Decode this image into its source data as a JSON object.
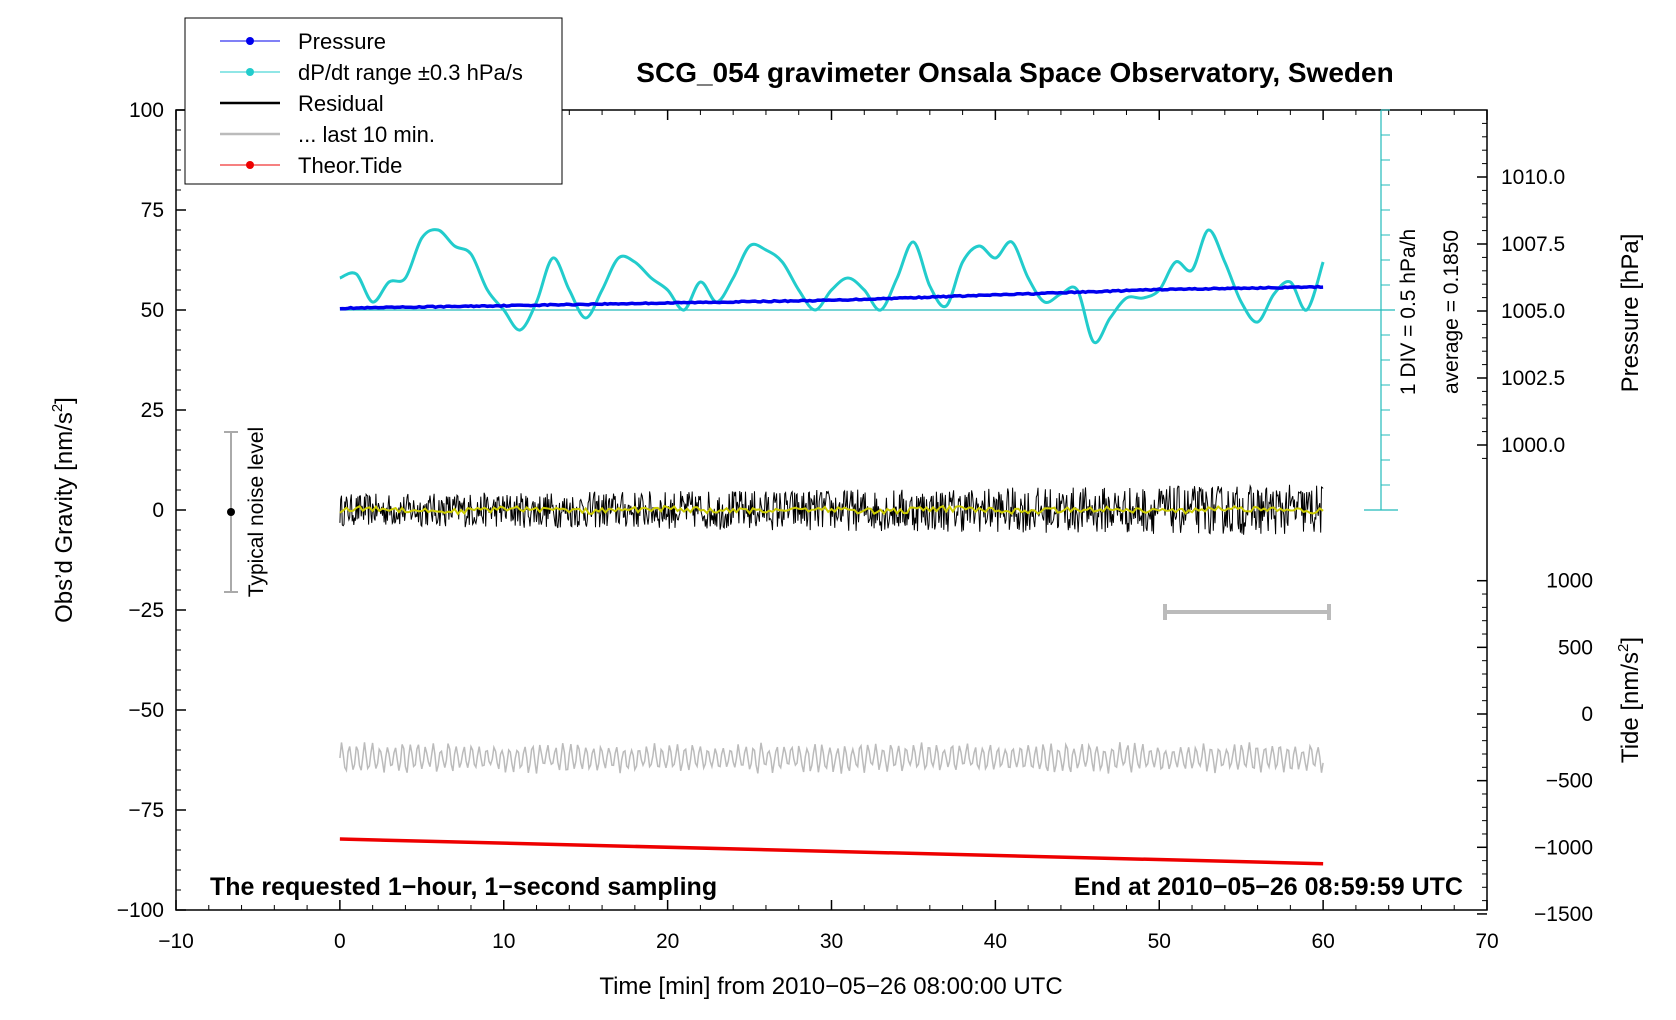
{
  "chart_data": {
    "type": "line",
    "title": "SCG_054 gravimeter Onsala Space Observatory, Sweden",
    "xlabel": "Time [min] from 2010−05−26 08:00:00 UTC",
    "ylabel_left_text": "Obs’d Gravity [nm/s",
    "ylabel_left_sup": "2",
    "ylabel_left_end": "]",
    "ylabel_right_top": "Pressure [hPa]",
    "ylabel_right_bottom_text": "Tide [nm/s",
    "ylabel_right_bottom_sup": "2",
    "ylabel_right_bottom_end": "]",
    "xlim": [
      -10,
      70
    ],
    "ylim_left": [
      -100,
      100
    ],
    "x_ticks": [
      "−10",
      "0",
      "10",
      "20",
      "30",
      "40",
      "50",
      "60",
      "70"
    ],
    "y_ticks_left": [
      "100",
      "75",
      "50",
      "25",
      "0",
      "−25",
      "−50",
      "−75",
      "−100"
    ],
    "y_ticks_right_pressure": [
      "1010.0",
      "1007.5",
      "1005.0",
      "1002.5",
      "1000.0"
    ],
    "y_ticks_right_tide": [
      "1000",
      "500",
      "0",
      "−500",
      "−1000",
      "−1500"
    ],
    "legend": {
      "placement": "top-left",
      "entries": [
        {
          "label": "Pressure",
          "color": "#0000ee"
        },
        {
          "label": "dP/dt range ±0.3 hPa/s",
          "color": "#22cccc"
        },
        {
          "label": "Residual",
          "color": "#000000"
        },
        {
          "label": "... last 10 min.",
          "color": "#bbbbbb"
        },
        {
          "label": "Theor.Tide",
          "color": "#ee0000"
        }
      ]
    },
    "annotations": {
      "bottom_left": "The requested 1−hour, 1−second sampling",
      "bottom_right": "End at 2010−05−26 08:59:59 UTC",
      "noise_label": "Typical noise level",
      "div_label": "1 DIV = 0.5 hPa/h",
      "average_label": "average = 0.1850"
    },
    "series": [
      {
        "name": "Pressure",
        "color": "#0000ee",
        "x": [
          0,
          10,
          20,
          30,
          40,
          50,
          60
        ],
        "y_pressure_hPa": [
          1005.1,
          1005.2,
          1005.3,
          1005.4,
          1005.6,
          1005.8,
          1005.9
        ]
      },
      {
        "name": "dP/dt range ±0.3 hPa/s",
        "color": "#22cccc",
        "x": [
          0,
          1,
          2,
          3,
          4,
          5,
          6,
          7,
          8,
          9,
          10,
          11,
          12,
          13,
          14,
          15,
          16,
          17,
          18,
          19,
          20,
          21,
          22,
          23,
          24,
          25,
          26,
          27,
          28,
          29,
          30,
          31,
          32,
          33,
          34,
          35,
          36,
          37,
          38,
          39,
          40,
          41,
          42,
          43,
          44,
          45,
          46,
          47,
          48,
          49,
          50,
          51,
          52,
          53,
          54,
          55,
          56,
          57,
          58,
          59,
          60
        ],
        "y": [
          58,
          59,
          52,
          57,
          58,
          68,
          70,
          66,
          64,
          55,
          50,
          45,
          52,
          63,
          55,
          48,
          55,
          63,
          62,
          58,
          55,
          50,
          57,
          52,
          58,
          66,
          65,
          62,
          55,
          50,
          55,
          58,
          55,
          50,
          58,
          67,
          56,
          51,
          62,
          66,
          63,
          67,
          58,
          52,
          54,
          55,
          42,
          48,
          53,
          53,
          55,
          62,
          60,
          70,
          62,
          52,
          47,
          54,
          57,
          50,
          62
        ]
      },
      {
        "name": "Residual",
        "color": "#000000",
        "x_range": [
          0,
          60
        ],
        "y_mean": 0,
        "y_amplitude": 4
      },
      {
        "name": "... last 10 min.",
        "color": "#bbbbbb",
        "x_range": [
          0,
          60
        ],
        "y_mean": -62,
        "y_amplitude": 4
      },
      {
        "name": "Theor.Tide",
        "color": "#ee0000",
        "x": [
          0,
          60
        ],
        "y_tide_nms2": [
          -938,
          -1123
        ]
      }
    ]
  }
}
